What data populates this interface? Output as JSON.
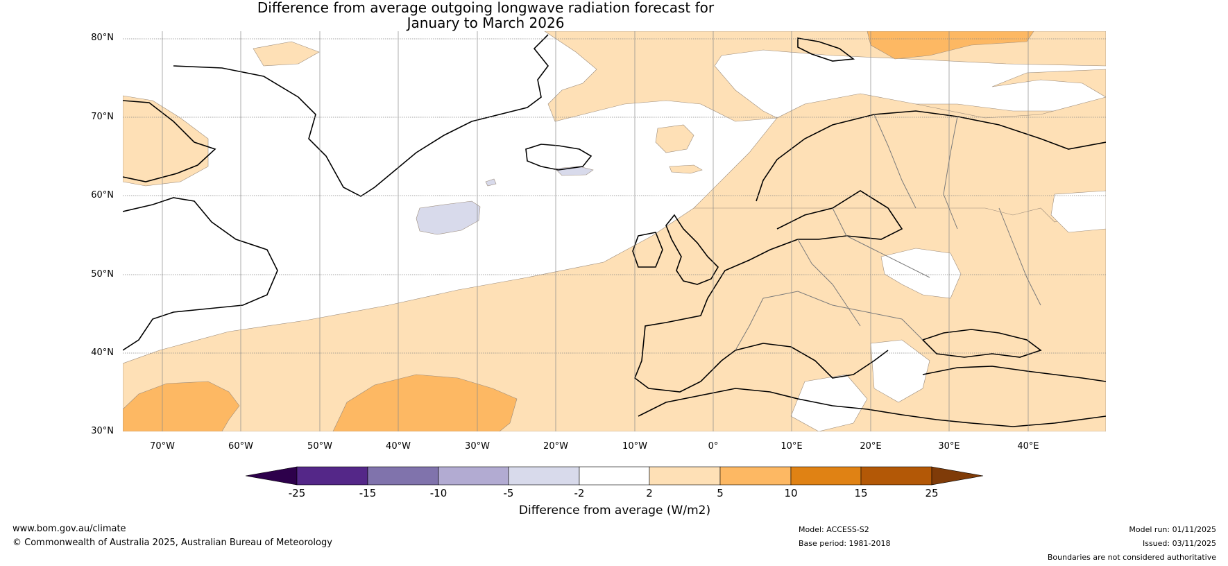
{
  "title": {
    "line1": "Difference from average outgoing longwave radiation forecast for",
    "line2": "January to March 2026"
  },
  "map": {
    "lat_labels": [
      "80°N",
      "70°N",
      "60°N",
      "50°N",
      "40°N",
      "30°N"
    ],
    "lon_labels": [
      "70°W",
      "60°W",
      "50°W",
      "40°W",
      "30°W",
      "20°W",
      "10°W",
      "0°",
      "10°E",
      "20°E",
      "30°E",
      "40°E"
    ]
  },
  "colorbar": {
    "ticks": [
      "-25",
      "-15",
      "-10",
      "-5",
      "-2",
      "2",
      "5",
      "10",
      "15",
      "25"
    ],
    "colors": [
      "#2d004b",
      "#542788",
      "#8073ac",
      "#b2abd2",
      "#d8daeb",
      "#ffffff",
      "#fee0b6",
      "#fdb863",
      "#e08214",
      "#b35806",
      "#7f3b08"
    ],
    "label": "Difference from average (W/m2)"
  },
  "footer": {
    "website": "www.bom.gov.au/climate",
    "copyright": "© Commonwealth of Australia 2025, Australian Bureau of Meteorology",
    "model": "Model: ACCESS-S2",
    "base_period": "Base period: 1981-2018",
    "model_run": "Model run: 01/11/2025",
    "issued": "Issued: 03/11/2025",
    "disclaimer": "Boundaries are not considered authoritative"
  }
}
